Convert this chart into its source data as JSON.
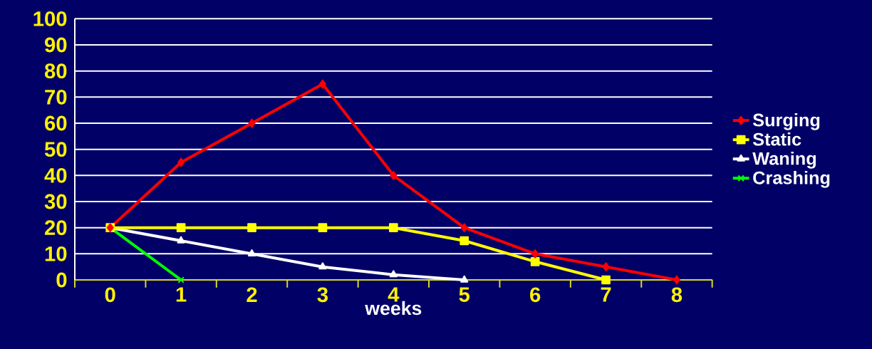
{
  "chart_data": {
    "type": "line",
    "xlabel": "weeks",
    "categories": [
      "0",
      "1",
      "2",
      "3",
      "4",
      "5",
      "6",
      "7",
      "8"
    ],
    "series": [
      {
        "name": "Surging",
        "color": "#ff0000",
        "marker": "diamond",
        "values": [
          20,
          45,
          60,
          75,
          40,
          20,
          10,
          5,
          0
        ]
      },
      {
        "name": "Static",
        "color": "#ffff00",
        "marker": "square",
        "values": [
          20,
          20,
          20,
          20,
          20,
          15,
          7,
          0,
          null
        ]
      },
      {
        "name": "Waning",
        "color": "#ffffff",
        "marker": "triangle",
        "values": [
          20,
          15,
          10,
          5,
          2,
          0,
          null,
          null,
          null
        ]
      },
      {
        "name": "Crashing",
        "color": "#00ff00",
        "marker": "cross",
        "values": [
          20,
          0,
          null,
          null,
          null,
          null,
          null,
          null,
          null
        ]
      }
    ],
    "ylim": [
      0,
      100
    ],
    "yticks": [
      0,
      10,
      20,
      30,
      40,
      50,
      60,
      70,
      80,
      90,
      100
    ],
    "grid": "y",
    "legend": "right"
  }
}
